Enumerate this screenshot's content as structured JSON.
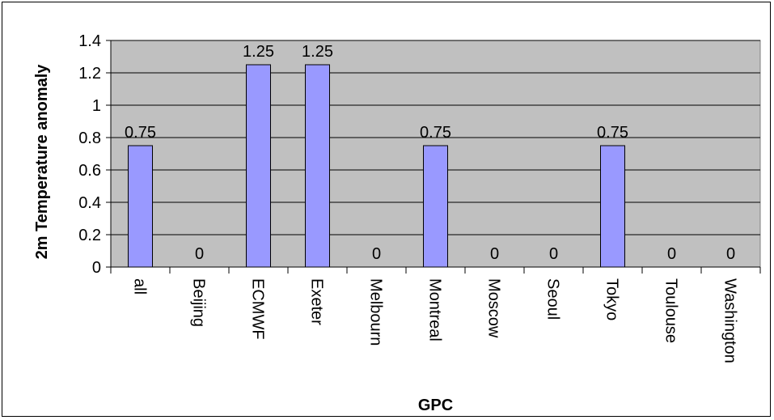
{
  "chart_data": {
    "type": "bar",
    "categories": [
      "all",
      "Beijing",
      "ECMWF",
      "Exeter",
      "Melbourn",
      "Montreal",
      "Moscow",
      "Seoul",
      "Tokyo",
      "Toulouse",
      "Washington"
    ],
    "series": [
      {
        "values": [
          0.75,
          0,
          1.25,
          1.25,
          0,
          0.75,
          0,
          0,
          0.75,
          0,
          0
        ]
      }
    ],
    "data_labels": [
      "0.75",
      "0",
      "1.25",
      "1.25",
      "0",
      "0.75",
      "0",
      "0",
      "0.75",
      "0",
      "0"
    ],
    "y_ticks": [
      "0",
      "0.2",
      "0.4",
      "0.6",
      "0.8",
      "1",
      "1.2",
      "1.4"
    ],
    "xlabel": "GPC",
    "ylabel": "2m Temperature anomaly",
    "ylim": [
      0,
      1.4
    ],
    "grid": true,
    "legend": "none",
    "colors": {
      "bar_fill": "#9999ff",
      "plot_background": "#c0c0c0",
      "gridline": "#000000"
    }
  }
}
